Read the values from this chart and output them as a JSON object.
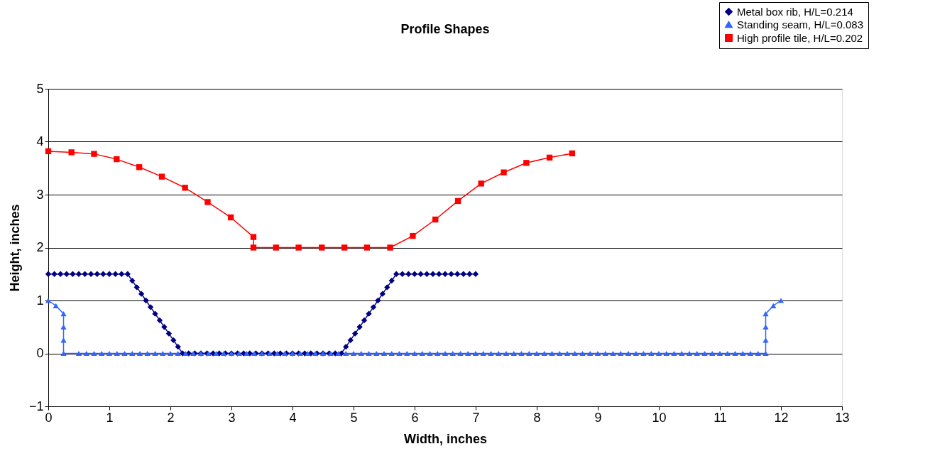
{
  "chart_data": {
    "type": "line",
    "title": "Profile Shapes",
    "xlabel": "Width, inches",
    "ylabel": "Height, inches",
    "xlim": [
      0,
      13
    ],
    "xticks": [
      0,
      1,
      2,
      3,
      4,
      5,
      6,
      7,
      8,
      9,
      10,
      11,
      12,
      13
    ],
    "ylim": [
      -1,
      5
    ],
    "yticks": [
      -1,
      0,
      1,
      2,
      3,
      4,
      5
    ],
    "grid": "y",
    "legend": "top right",
    "line_style": "solid",
    "series": [
      {
        "name": "Metal box rib, H/L=0.214",
        "color": "#000080",
        "marker": "diamond",
        "x": [
          0,
          0.1,
          0.2,
          0.3,
          0.4,
          0.5,
          0.6,
          0.7,
          0.8,
          0.9,
          1.0,
          1.1,
          1.2,
          1.3,
          1.375,
          1.45,
          1.525,
          1.6,
          1.675,
          1.75,
          1.825,
          1.9,
          1.975,
          2.05,
          2.125,
          2.2,
          2.3,
          2.4,
          2.5,
          2.6,
          2.7,
          2.8,
          2.9,
          3.0,
          3.1,
          3.2,
          3.3,
          3.4,
          3.5,
          3.6,
          3.7,
          3.8,
          3.9,
          4.0,
          4.1,
          4.2,
          4.3,
          4.4,
          4.5,
          4.6,
          4.7,
          4.8,
          4.875,
          4.95,
          5.025,
          5.1,
          5.175,
          5.25,
          5.325,
          5.4,
          5.475,
          5.55,
          5.625,
          5.7,
          5.8,
          5.9,
          6.0,
          6.1,
          6.2,
          6.3,
          6.4,
          6.5,
          6.6,
          6.7,
          6.8,
          6.9,
          7.0
        ],
        "values": [
          1.5,
          1.5,
          1.5,
          1.5,
          1.5,
          1.5,
          1.5,
          1.5,
          1.5,
          1.5,
          1.5,
          1.5,
          1.5,
          1.5,
          1.375,
          1.25,
          1.125,
          1,
          0.875,
          0.75,
          0.625,
          0.5,
          0.375,
          0.25,
          0.125,
          0,
          0,
          0,
          0,
          0,
          0,
          0,
          0,
          0,
          0,
          0,
          0,
          0,
          0,
          0,
          0,
          0,
          0,
          0,
          0,
          0,
          0,
          0,
          0,
          0,
          0,
          0,
          0.125,
          0.25,
          0.375,
          0.5,
          0.625,
          0.75,
          0.875,
          1,
          1.125,
          1.25,
          1.375,
          1.5,
          1.5,
          1.5,
          1.5,
          1.5,
          1.5,
          1.5,
          1.5,
          1.5,
          1.5,
          1.5,
          1.5,
          1.5,
          1.5
        ]
      },
      {
        "name": "Standing seam, H/L=0.083",
        "color": "#3366ff",
        "marker": "triangle",
        "x": [
          0,
          0.125,
          0.25,
          0.25,
          0.25,
          0.25,
          0.5,
          0.625,
          0.75,
          0.875,
          1,
          1.125,
          1.25,
          1.375,
          1.5,
          1.625,
          1.75,
          1.875,
          2,
          2.125,
          2.25,
          2.375,
          2.5,
          2.625,
          2.75,
          2.875,
          3,
          3.125,
          3.25,
          3.375,
          3.5,
          3.625,
          3.75,
          3.875,
          4,
          4.125,
          4.25,
          4.375,
          4.5,
          4.625,
          4.75,
          4.875,
          5,
          5.125,
          5.25,
          5.375,
          5.5,
          5.625,
          5.75,
          5.875,
          6,
          6.125,
          6.25,
          6.375,
          6.5,
          6.625,
          6.75,
          6.875,
          7,
          7.125,
          7.25,
          7.375,
          7.5,
          7.625,
          7.75,
          7.875,
          8,
          8.125,
          8.25,
          8.375,
          8.5,
          8.625,
          8.75,
          8.875,
          9,
          9.125,
          9.25,
          9.375,
          9.5,
          9.625,
          9.75,
          9.875,
          10,
          10.125,
          10.25,
          10.375,
          10.5,
          10.625,
          10.75,
          10.875,
          11,
          11.125,
          11.25,
          11.375,
          11.5,
          11.625,
          11.75,
          11.75,
          11.75,
          11.75,
          11.875,
          12
        ],
        "values": [
          1,
          0.9,
          0.75,
          0.5,
          0.25,
          0,
          0,
          0,
          0,
          0,
          0,
          0,
          0,
          0,
          0,
          0,
          0,
          0,
          0,
          0,
          0,
          0,
          0,
          0,
          0,
          0,
          0,
          0,
          0,
          0,
          0,
          0,
          0,
          0,
          0,
          0,
          0,
          0,
          0,
          0,
          0,
          0,
          0,
          0,
          0,
          0,
          0,
          0,
          0,
          0,
          0,
          0,
          0,
          0,
          0,
          0,
          0,
          0,
          0,
          0,
          0,
          0,
          0,
          0,
          0,
          0,
          0,
          0,
          0,
          0,
          0,
          0,
          0,
          0,
          0,
          0,
          0,
          0,
          0,
          0,
          0,
          0,
          0,
          0,
          0,
          0,
          0,
          0,
          0,
          0,
          0,
          0,
          0,
          0,
          0,
          0,
          0,
          0.25,
          0.5,
          0.75,
          0.9,
          1
        ]
      },
      {
        "name": "High profile tile, H/L=0.202",
        "color": "#ff0000",
        "marker": "square",
        "x": [
          0,
          0.38,
          0.75,
          1.12,
          1.49,
          1.86,
          2.24,
          2.61,
          2.99,
          3.36,
          3.36,
          3.73,
          4.1,
          4.48,
          4.85,
          5.22,
          5.6,
          5.97,
          6.34,
          6.71,
          7.09,
          7.46,
          7.83,
          8.21,
          8.58
        ],
        "values": [
          3.82,
          3.8,
          3.77,
          3.67,
          3.52,
          3.34,
          3.13,
          2.86,
          2.57,
          2.2,
          2.0,
          2.0,
          2.0,
          2.0,
          2.0,
          2.0,
          2.0,
          2.22,
          2.53,
          2.88,
          3.21,
          3.42,
          3.6,
          3.7,
          3.78
        ]
      }
    ]
  }
}
